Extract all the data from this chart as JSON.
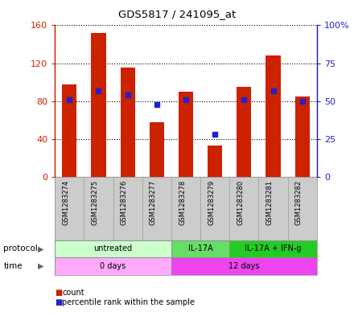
{
  "title": "GDS5817 / 241095_at",
  "samples": [
    "GSM1283274",
    "GSM1283275",
    "GSM1283276",
    "GSM1283277",
    "GSM1283278",
    "GSM1283279",
    "GSM1283280",
    "GSM1283281",
    "GSM1283282"
  ],
  "counts": [
    98,
    152,
    115,
    58,
    90,
    33,
    95,
    128,
    85
  ],
  "percentiles": [
    51,
    57,
    54,
    48,
    51,
    28,
    51,
    57,
    50
  ],
  "ylim_left": [
    0,
    160
  ],
  "ylim_right": [
    0,
    100
  ],
  "yticks_left": [
    0,
    40,
    80,
    120,
    160
  ],
  "yticks_right": [
    0,
    25,
    50,
    75,
    100
  ],
  "ytick_labels_left": [
    "0",
    "40",
    "80",
    "120",
    "160"
  ],
  "ytick_labels_right": [
    "0",
    "25",
    "50",
    "75",
    "100%"
  ],
  "bar_color": "#cc2200",
  "dot_color": "#2222cc",
  "left_axis_color": "#cc2200",
  "right_axis_color": "#2222cc",
  "grid_color": "#000000",
  "bg_color": "#ffffff",
  "protocol_groups": [
    {
      "label": "untreated",
      "start": 0,
      "end": 4,
      "color": "#ccffcc"
    },
    {
      "label": "IL-17A",
      "start": 4,
      "end": 6,
      "color": "#66dd66"
    },
    {
      "label": "IL-17A + IFN-g",
      "start": 6,
      "end": 9,
      "color": "#22cc22"
    }
  ],
  "time_groups": [
    {
      "label": "0 days",
      "start": 0,
      "end": 4,
      "color": "#ffaaff"
    },
    {
      "label": "12 days",
      "start": 4,
      "end": 9,
      "color": "#ee44ee"
    }
  ],
  "xlabel_area_color": "#cccccc",
  "bar_width": 0.5,
  "legend_items": [
    {
      "label": "count",
      "color": "#cc2200"
    },
    {
      "label": "percentile rank within the sample",
      "color": "#2222cc"
    }
  ]
}
